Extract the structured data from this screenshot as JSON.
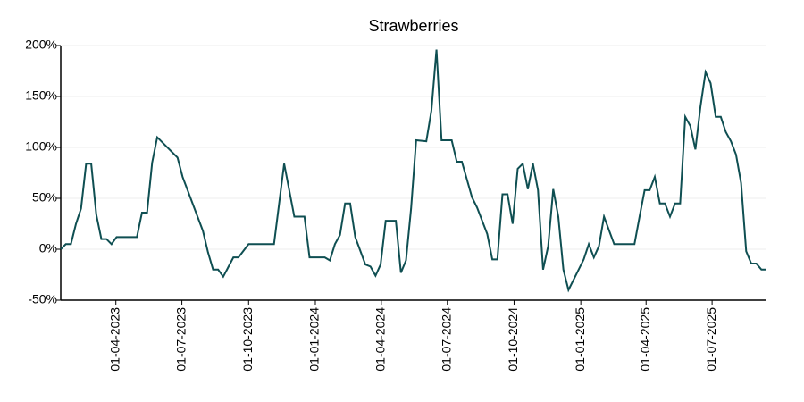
{
  "chart_data": {
    "type": "line",
    "title": "Strawberries",
    "x": [
      "2023-01-15",
      "2023-01-22",
      "2023-01-29",
      "2023-02-05",
      "2023-02-12",
      "2023-02-19",
      "2023-02-26",
      "2023-03-05",
      "2023-03-12",
      "2023-03-19",
      "2023-03-26",
      "2023-04-02",
      "2023-04-09",
      "2023-04-30",
      "2023-05-07",
      "2023-05-14",
      "2023-05-21",
      "2023-05-28",
      "2023-06-25",
      "2023-07-02",
      "2023-07-30",
      "2023-08-06",
      "2023-08-13",
      "2023-08-20",
      "2023-08-27",
      "2023-09-10",
      "2023-09-17",
      "2023-10-01",
      "2023-11-05",
      "2023-11-19",
      "2023-12-03",
      "2023-12-17",
      "2023-12-24",
      "2024-01-14",
      "2024-01-21",
      "2024-01-28",
      "2024-02-04",
      "2024-02-11",
      "2024-02-18",
      "2024-02-25",
      "2024-03-10",
      "2024-03-17",
      "2024-03-24",
      "2024-03-31",
      "2024-04-07",
      "2024-04-21",
      "2024-04-28",
      "2024-05-05",
      "2024-05-12",
      "2024-05-19",
      "2024-06-02",
      "2024-06-09",
      "2024-06-16",
      "2024-06-23",
      "2024-07-07",
      "2024-07-14",
      "2024-07-21",
      "2024-08-04",
      "2024-08-11",
      "2024-08-25",
      "2024-09-01",
      "2024-09-08",
      "2024-09-15",
      "2024-09-22",
      "2024-09-29",
      "2024-10-06",
      "2024-10-13",
      "2024-10-20",
      "2024-10-27",
      "2024-11-03",
      "2024-11-10",
      "2024-11-17",
      "2024-11-24",
      "2024-12-01",
      "2024-12-08",
      "2024-12-15",
      "2025-01-05",
      "2025-01-12",
      "2025-01-19",
      "2025-01-26",
      "2025-02-02",
      "2025-02-16",
      "2025-03-16",
      "2025-03-23",
      "2025-03-30",
      "2025-04-06",
      "2025-04-13",
      "2025-04-20",
      "2025-04-27",
      "2025-05-04",
      "2025-05-11",
      "2025-05-18",
      "2025-05-25",
      "2025-06-01",
      "2025-06-08",
      "2025-06-15",
      "2025-06-22",
      "2025-06-29",
      "2025-07-06",
      "2025-07-13",
      "2025-07-20",
      "2025-07-27",
      "2025-08-03",
      "2025-08-10",
      "2025-08-17",
      "2025-08-24",
      "2025-08-31",
      "2025-09-07",
      "2025-09-14"
    ],
    "series": [
      {
        "name": "Strawberries",
        "color": "#0f4f52",
        "values": [
          0,
          5,
          5,
          25,
          40,
          84,
          84,
          34,
          10,
          10,
          5,
          12,
          12,
          12,
          36,
          36,
          85,
          110,
          90,
          71,
          18,
          -3,
          -20,
          -20,
          -27,
          -8,
          -8,
          5,
          5,
          84,
          32,
          32,
          -8,
          -8,
          -11,
          5,
          14,
          45,
          45,
          12,
          -15,
          -17,
          -26,
          -15,
          28,
          28,
          -23,
          -11,
          40,
          107,
          106,
          136,
          196,
          107,
          107,
          86,
          86,
          51,
          41,
          15,
          -10,
          -10,
          54,
          54,
          25,
          79,
          84,
          59,
          84,
          58,
          -20,
          3,
          59,
          32,
          -20,
          -40,
          -10,
          5,
          -8,
          3,
          32,
          5,
          5,
          32,
          58,
          58,
          71,
          45,
          45,
          32,
          45,
          45,
          130,
          121,
          98,
          140,
          174,
          163,
          130,
          130,
          115,
          106,
          93,
          65,
          -2,
          -14,
          -14,
          -20,
          -20
        ]
      }
    ],
    "xlim": [
      "2023-01-15",
      "2025-09-14"
    ],
    "xticks": [
      {
        "value": "2023-04-01",
        "label": "01-04-2023"
      },
      {
        "value": "2023-07-01",
        "label": "01-07-2023"
      },
      {
        "value": "2023-10-01",
        "label": "01-10-2023"
      },
      {
        "value": "2024-01-01",
        "label": "01-01-2024"
      },
      {
        "value": "2024-04-01",
        "label": "01-04-2024"
      },
      {
        "value": "2024-07-01",
        "label": "01-07-2024"
      },
      {
        "value": "2024-10-01",
        "label": "01-10-2024"
      },
      {
        "value": "2025-01-01",
        "label": "01-01-2025"
      },
      {
        "value": "2025-04-01",
        "label": "01-04-2025"
      },
      {
        "value": "2025-07-01",
        "label": "01-07-2025"
      }
    ],
    "ylim": [
      -50,
      200
    ],
    "yticks": [
      {
        "value": -50,
        "label": "-50%"
      },
      {
        "value": 0,
        "label": "0%"
      },
      {
        "value": 50,
        "label": "50%"
      },
      {
        "value": 100,
        "label": "100%"
      },
      {
        "value": 150,
        "label": "150%"
      },
      {
        "value": 200,
        "label": "200%"
      }
    ],
    "grid": true
  }
}
